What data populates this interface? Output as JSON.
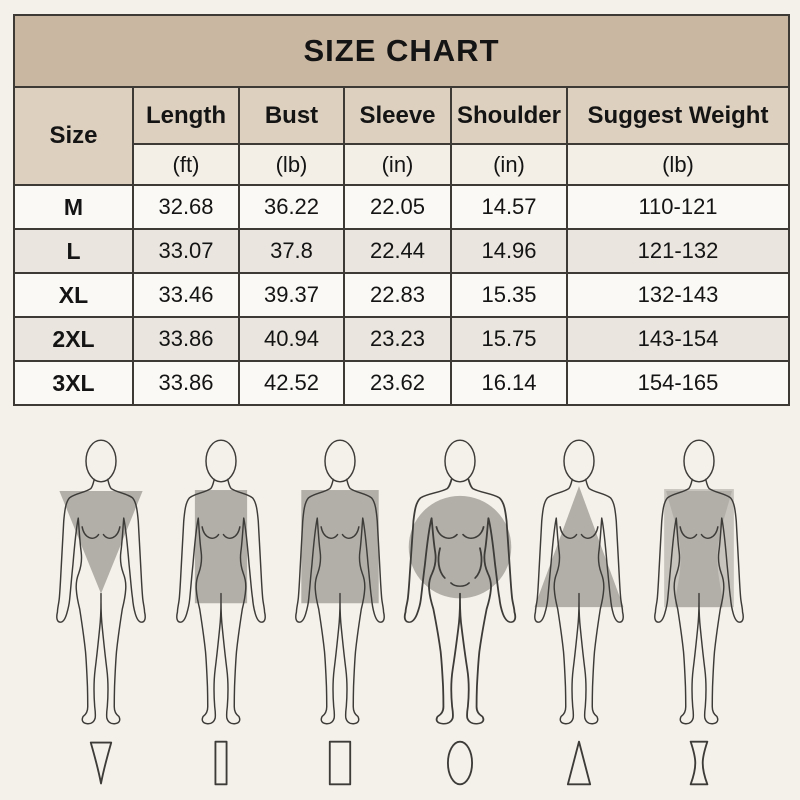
{
  "title": "SIZE CHART",
  "table": {
    "size_header": "Size",
    "columns": [
      {
        "label": "Length",
        "unit": "(ft)"
      },
      {
        "label": "Bust",
        "unit": "(lb)"
      },
      {
        "label": "Sleeve",
        "unit": "(in)"
      },
      {
        "label": "Shoulder",
        "unit": "(in)"
      },
      {
        "label": "Suggest Weight",
        "unit": "(lb)"
      }
    ],
    "rows": [
      {
        "size": "M",
        "values": [
          "32.68",
          "36.22",
          "22.05",
          "14.57",
          "110-121"
        ]
      },
      {
        "size": "L",
        "values": [
          "33.07",
          "37.8",
          "22.44",
          "14.96",
          "121-132"
        ]
      },
      {
        "size": "XL",
        "values": [
          "33.46",
          "39.37",
          "22.83",
          "15.35",
          "132-143"
        ]
      },
      {
        "size": "2XL",
        "values": [
          "33.86",
          "40.94",
          "23.23",
          "15.75",
          "143-154"
        ]
      },
      {
        "size": "3XL",
        "values": [
          "33.86",
          "42.52",
          "23.62",
          "16.14",
          "154-165"
        ]
      }
    ]
  },
  "body_shapes": [
    {
      "name": "inverted-triangle",
      "overlay": "inverted-triangle",
      "icon": "inverted-triangle",
      "body": "std"
    },
    {
      "name": "rectangle",
      "overlay": "rect-narrow",
      "icon": "rect-narrow",
      "body": "std"
    },
    {
      "name": "square",
      "overlay": "rect-wide",
      "icon": "rect-wide",
      "body": "std"
    },
    {
      "name": "round",
      "overlay": "circle",
      "icon": "oval",
      "body": "plus"
    },
    {
      "name": "pear",
      "overlay": "triangle",
      "icon": "triangle",
      "body": "std"
    },
    {
      "name": "hourglass",
      "overlay": "hourglass",
      "icon": "hourglass",
      "body": "std"
    }
  ],
  "colors": {
    "page_bg": "#f4f0ea",
    "title_bg": "#cab7a1",
    "header_bg": "#ddd0bf",
    "unit_bg": "#f3efe7",
    "row_bg": "#fbf9f5",
    "row_alt_bg": "#eae6df",
    "border": "#3d3a35",
    "text": "#141414",
    "figure_line": "#3e3c39",
    "overlay_gray": "#b2afa9",
    "overlay_light": "#c7c3bd"
  }
}
